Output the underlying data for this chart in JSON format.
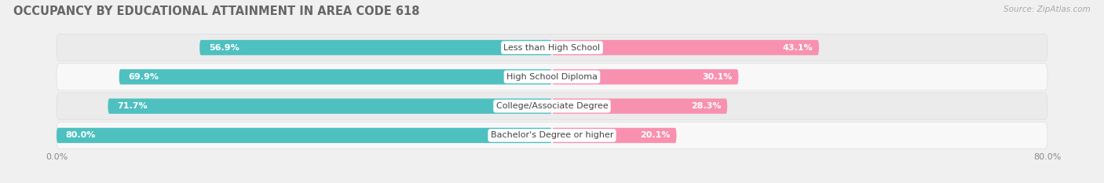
{
  "title": "OCCUPANCY BY EDUCATIONAL ATTAINMENT IN AREA CODE 618",
  "source": "Source: ZipAtlas.com",
  "categories": [
    "Less than High School",
    "High School Diploma",
    "College/Associate Degree",
    "Bachelor's Degree or higher"
  ],
  "owner_values": [
    56.9,
    69.9,
    71.7,
    80.0
  ],
  "renter_values": [
    43.1,
    30.1,
    28.3,
    20.1
  ],
  "owner_color": "#4ec0c0",
  "renter_color": "#f891b0",
  "background_color": "#f0f0f0",
  "row_bg_color": "#e8e8e8",
  "row_highlight_color": "#ffffff",
  "title_fontsize": 10.5,
  "label_fontsize": 8,
  "value_fontsize": 8,
  "axis_fontsize": 8
}
